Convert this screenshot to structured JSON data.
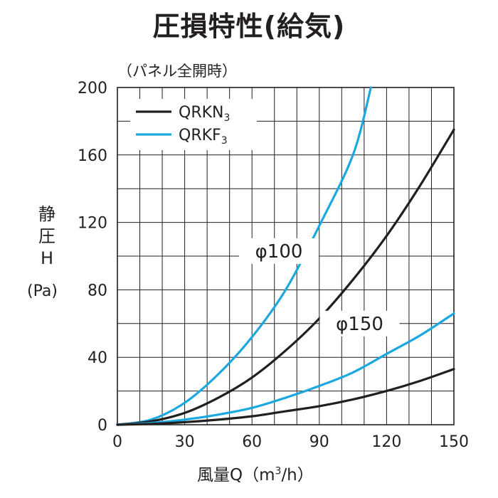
{
  "title": "圧損特性(給気)",
  "subtitle": "（パネル全開時）",
  "axis": {
    "y_label_lines": [
      "静",
      "圧",
      "H"
    ],
    "y_unit": "(Pa)",
    "x_label": "風量Q",
    "x_unit_prefix": "（m",
    "x_unit_sup": "3",
    "x_unit_suffix": "/h）"
  },
  "colors": {
    "QRKN3": "#231f20",
    "QRKF3": "#1ba8e0",
    "grid": "#231f20"
  },
  "chart_data": {
    "type": "line",
    "title": "圧損特性(給気)",
    "subtitle": "（パネル全開時）",
    "xlabel": "風量Q（m3/h）",
    "ylabel": "静圧H (Pa)",
    "xlim": [
      0,
      150
    ],
    "ylim": [
      0,
      200
    ],
    "xticks": [
      0,
      30,
      60,
      90,
      120,
      150
    ],
    "yticks": [
      0,
      40,
      80,
      120,
      160,
      200
    ],
    "grid": true,
    "legend_position": "top-left",
    "legend": [
      {
        "label": "QRKN",
        "sub": "3",
        "color": "#231f20"
      },
      {
        "label": "QRKF",
        "sub": "3",
        "color": "#1ba8e0"
      }
    ],
    "annotations": [
      {
        "text": "φ100",
        "x": 72,
        "y": 103
      },
      {
        "text": "φ150",
        "x": 108,
        "y": 60
      }
    ],
    "series": [
      {
        "name": "QRKF3",
        "label": "φ100",
        "color": "#1ba8e0",
        "x": [
          0,
          15,
          30,
          45,
          60,
          75,
          90,
          105,
          113
        ],
        "y": [
          0,
          3,
          13,
          30,
          52,
          80,
          118,
          160,
          200
        ]
      },
      {
        "name": "QRKN3",
        "label": "φ100",
        "color": "#231f20",
        "x": [
          0,
          15,
          30,
          45,
          60,
          75,
          90,
          105,
          120,
          135,
          150
        ],
        "y": [
          0,
          2,
          7,
          16,
          28,
          44,
          63,
          86,
          112,
          142,
          175
        ]
      },
      {
        "name": "QRKF3",
        "label": "φ150",
        "color": "#1ba8e0",
        "x": [
          0,
          15,
          30,
          45,
          60,
          75,
          90,
          105,
          120,
          135,
          150
        ],
        "y": [
          0,
          1,
          3,
          6,
          10,
          16,
          23,
          31,
          42,
          53,
          66
        ]
      },
      {
        "name": "QRKN3",
        "label": "φ150",
        "color": "#231f20",
        "x": [
          0,
          15,
          30,
          45,
          60,
          75,
          90,
          105,
          120,
          135,
          150
        ],
        "y": [
          0,
          0.5,
          1.5,
          3,
          5,
          8,
          11,
          15,
          20,
          26,
          33
        ]
      }
    ]
  }
}
